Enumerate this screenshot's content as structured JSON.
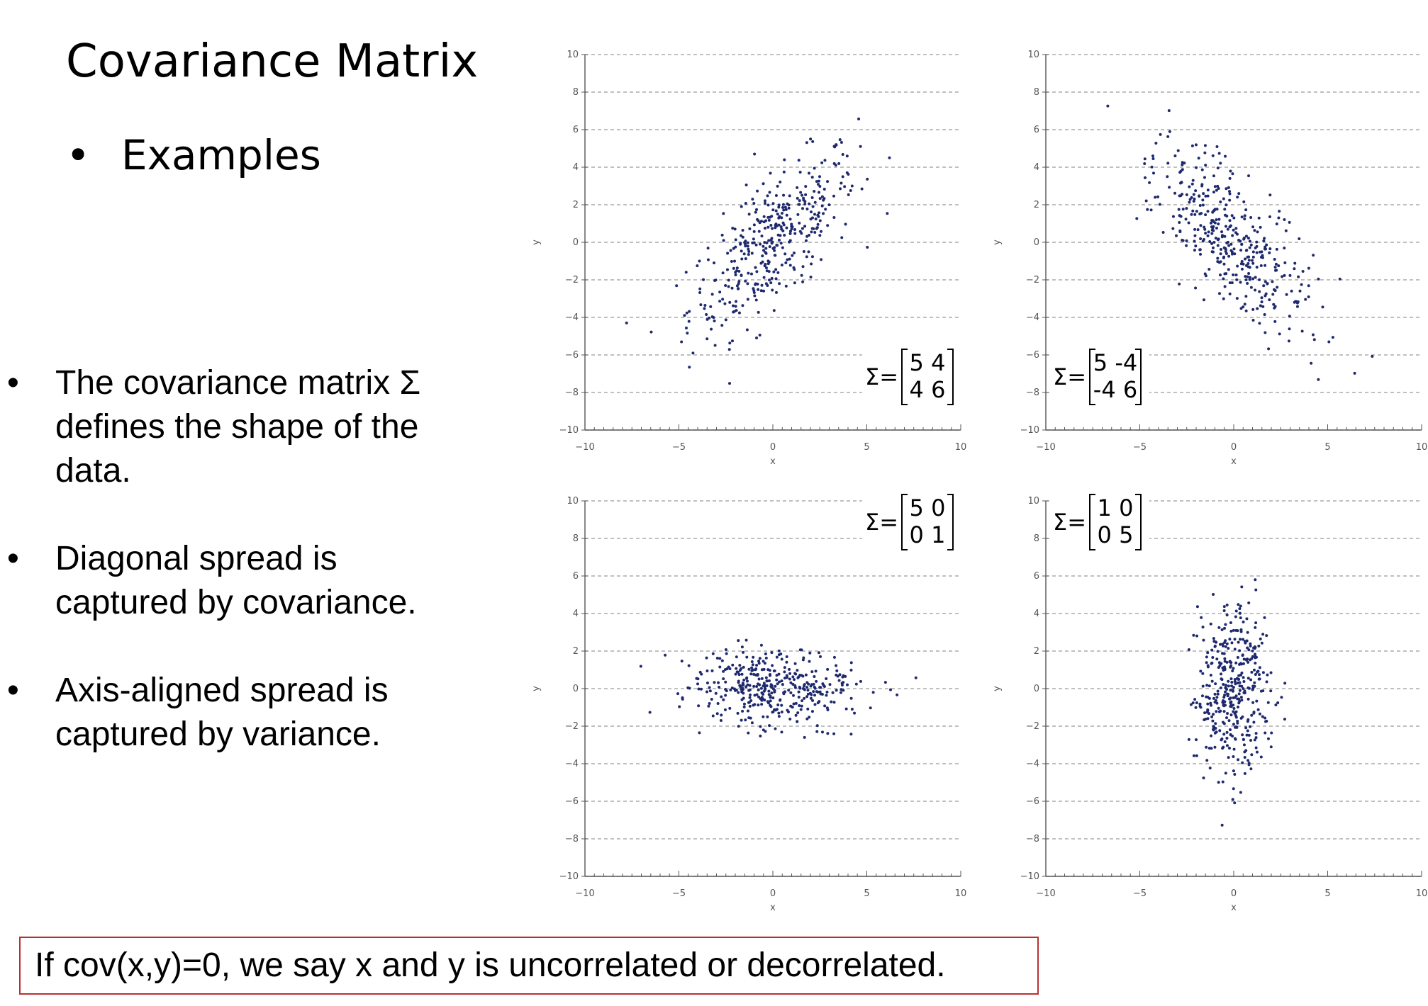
{
  "slide": {
    "title": "Covariance Matrix",
    "subbullet": "Examples",
    "bullet_glyph": "•",
    "bullets": [
      "The covariance matrix Σ defines the shape of the data.",
      "Diagonal spread is captured by covariance.",
      "Axis-aligned spread is captured by variance."
    ],
    "note": "If cov(x,y)=0, we say x and y is uncorrelated or decorrelated."
  },
  "colors": {
    "points": "#1f2a6e",
    "grid": "#9a9a9a",
    "note_border": "#b8312f"
  },
  "chart_data": [
    {
      "type": "scatter",
      "xlabel": "x",
      "ylabel": "y",
      "xlim": [
        -10,
        10
      ],
      "ylim": [
        -10,
        10
      ],
      "xticks": [
        -10,
        -5,
        0,
        5,
        10
      ],
      "yticks": [
        -10,
        -8,
        -6,
        -4,
        -2,
        0,
        2,
        4,
        6,
        8,
        10
      ],
      "grid": "horizontal dashed",
      "annotation": {
        "symbol": "Σ=",
        "matrix": [
          [
            "5",
            "4"
          ],
          [
            "4",
            "6"
          ]
        ],
        "placement": "bottom-right"
      },
      "covariance": [
        [
          5,
          4
        ],
        [
          4,
          6
        ]
      ],
      "n_points": 400
    },
    {
      "type": "scatter",
      "xlabel": "x",
      "ylabel": "y",
      "xlim": [
        -10,
        10
      ],
      "ylim": [
        -10,
        10
      ],
      "xticks": [
        -10,
        -5,
        0,
        5,
        10
      ],
      "yticks": [
        -10,
        -8,
        -6,
        -4,
        -2,
        0,
        2,
        4,
        6,
        8,
        10
      ],
      "grid": "horizontal dashed",
      "annotation": {
        "symbol": "Σ=",
        "matrix": [
          [
            "5",
            "-4"
          ],
          [
            "-4",
            "6"
          ]
        ],
        "placement": "bottom-left"
      },
      "covariance": [
        [
          5,
          -4
        ],
        [
          -4,
          6
        ]
      ],
      "n_points": 400
    },
    {
      "type": "scatter",
      "xlabel": "x",
      "ylabel": "y",
      "xlim": [
        -10,
        10
      ],
      "ylim": [
        -10,
        10
      ],
      "xticks": [
        -10,
        -5,
        0,
        5,
        10
      ],
      "yticks": [
        -10,
        -8,
        -6,
        -4,
        -2,
        0,
        2,
        4,
        6,
        8,
        10
      ],
      "grid": "horizontal dashed",
      "annotation": {
        "symbol": "Σ=",
        "matrix": [
          [
            "5",
            "0"
          ],
          [
            "0",
            "1"
          ]
        ],
        "placement": "top-right"
      },
      "covariance": [
        [
          5,
          0
        ],
        [
          0,
          1
        ]
      ],
      "n_points": 400
    },
    {
      "type": "scatter",
      "xlabel": "x",
      "ylabel": "y",
      "xlim": [
        -10,
        10
      ],
      "ylim": [
        -10,
        10
      ],
      "xticks": [
        -10,
        -5,
        0,
        5,
        10
      ],
      "yticks": [
        -10,
        -8,
        -6,
        -4,
        -2,
        0,
        2,
        4,
        6,
        8,
        10
      ],
      "grid": "horizontal dashed",
      "annotation": {
        "symbol": "Σ=",
        "matrix": [
          [
            "1",
            "0"
          ],
          [
            "0",
            "5"
          ]
        ],
        "placement": "top-left"
      },
      "covariance": [
        [
          1,
          0
        ],
        [
          0,
          5
        ]
      ],
      "n_points": 400
    }
  ]
}
